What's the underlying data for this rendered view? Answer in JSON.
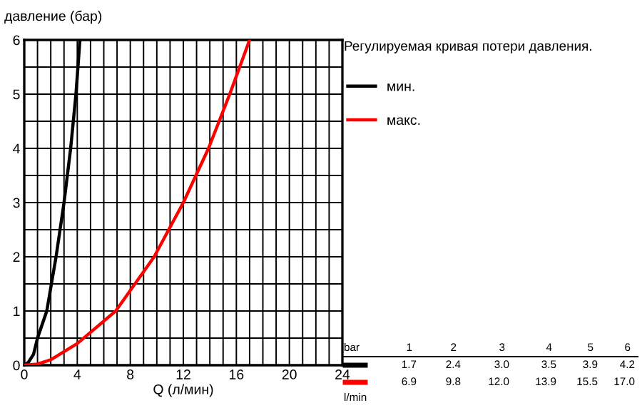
{
  "chart_data": {
    "type": "line",
    "title": "Регулируемая кривая потери давления.",
    "xlabel": "Q (л/мин)",
    "ylabel": "давление (бар)",
    "xlim": [
      0,
      24
    ],
    "ylim": [
      0,
      6
    ],
    "xticks": [
      0,
      {
        "value": 1,
        "label": null
      },
      {
        "value": 2,
        "label": null
      },
      {
        "value": 3,
        "label": null
      },
      4,
      {
        "value": 5,
        "label": null
      },
      {
        "value": 6,
        "label": null
      },
      {
        "value": 7,
        "label": null
      },
      8,
      {
        "value": 9,
        "label": null
      },
      {
        "value": 10,
        "label": null
      },
      {
        "value": 11,
        "label": null
      },
      12,
      {
        "value": 13,
        "label": null
      },
      {
        "value": 14,
        "label": null
      },
      {
        "value": 15,
        "label": null
      },
      16,
      {
        "value": 17,
        "label": null
      },
      {
        "value": 18,
        "label": null
      },
      {
        "value": 19,
        "label": null
      },
      20,
      {
        "value": 21,
        "label": null
      },
      {
        "value": 22,
        "label": null
      },
      {
        "value": 23,
        "label": null
      },
      24
    ],
    "yticks": [
      0,
      {
        "value": 0.5,
        "label": null
      },
      1,
      {
        "value": 1.5,
        "label": null
      },
      2,
      {
        "value": 2.5,
        "label": null
      },
      3,
      {
        "value": 3.5,
        "label": null
      },
      4,
      {
        "value": 4.5,
        "label": null
      },
      5,
      {
        "value": 5.5,
        "label": null
      },
      6
    ],
    "grid": true,
    "legend": "right",
    "marker": "none",
    "line_style": "solid",
    "series": [
      {
        "name": "мин.",
        "color": "#000000",
        "x": [
          0,
          0.3,
          0.7,
          1.0,
          1.7,
          2.4,
          3.0,
          3.5,
          3.9,
          4.2
        ],
        "values": [
          0,
          0.05,
          0.2,
          0.5,
          1,
          2,
          3,
          4,
          5,
          6
        ]
      },
      {
        "name": "макс.",
        "color": "#ff0000",
        "x": [
          0,
          1,
          2,
          4,
          6.9,
          9.8,
          12.0,
          13.9,
          15.5,
          17.0
        ],
        "values": [
          0,
          0.02,
          0.1,
          0.4,
          1,
          2,
          3,
          4,
          5,
          6
        ]
      }
    ],
    "annotations": [
      "bar",
      "1",
      "2",
      "3",
      "4",
      "5",
      "6",
      "1.7",
      "2.4",
      "3.0",
      "3.5",
      "3.9",
      "4.2",
      "6.9",
      "9.8",
      "12.0",
      "13.9",
      "15.5",
      "17.0",
      "l/min"
    ]
  }
}
